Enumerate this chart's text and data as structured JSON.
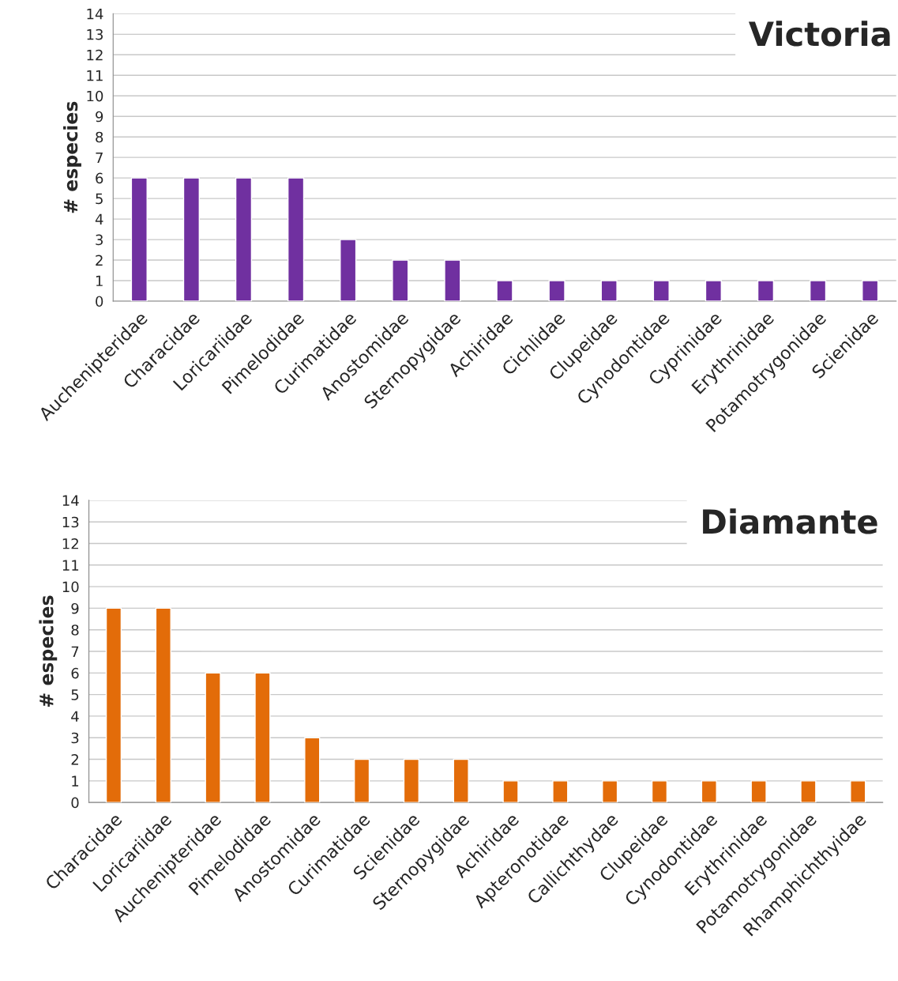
{
  "chart_data": [
    {
      "type": "bar",
      "title": "Victoria",
      "ylabel": "# especies",
      "categories": [
        "Auchenipteridae",
        "Characidae",
        "Loricariidae",
        "Pimelodidae",
        "Curimatidae",
        "Anostomidae",
        "Sternopygidae",
        "Achiridae",
        "Cichlidae",
        "Clupeidae",
        "Cynodontidae",
        "Cyprinidae",
        "Erythrinidae",
        "Potamotrygonidae",
        "Scienidae"
      ],
      "values": [
        6,
        6,
        6,
        6,
        3,
        2,
        2,
        1,
        1,
        1,
        1,
        1,
        1,
        1,
        1
      ],
      "color": "#7030a0",
      "ylim": [
        0,
        14
      ],
      "yticks": [
        0,
        1,
        2,
        3,
        4,
        5,
        6,
        7,
        8,
        9,
        10,
        11,
        12,
        13,
        14
      ],
      "grid": "y",
      "legend": false
    },
    {
      "type": "bar",
      "title": "Diamante",
      "ylabel": "# especies",
      "categories": [
        "Characidae",
        "Loricariidae",
        "Auchenipteridae",
        "Pimelodidae",
        "Anostomidae",
        "Curimatidae",
        "Scienidae",
        "Sternopygidae",
        "Achiridae",
        "Apteronotidae",
        "Callichthydae",
        "Clupeidae",
        "Cynodontidae",
        "Erythrinidae",
        "Potamotrygonidae",
        "Rhamphichthyidae"
      ],
      "values": [
        9,
        9,
        6,
        6,
        3,
        2,
        2,
        2,
        1,
        1,
        1,
        1,
        1,
        1,
        1,
        1
      ],
      "color": "#e36c09",
      "ylim": [
        0,
        14
      ],
      "yticks": [
        0,
        1,
        2,
        3,
        4,
        5,
        6,
        7,
        8,
        9,
        10,
        11,
        12,
        13,
        14
      ],
      "grid": "y",
      "legend": false
    }
  ]
}
